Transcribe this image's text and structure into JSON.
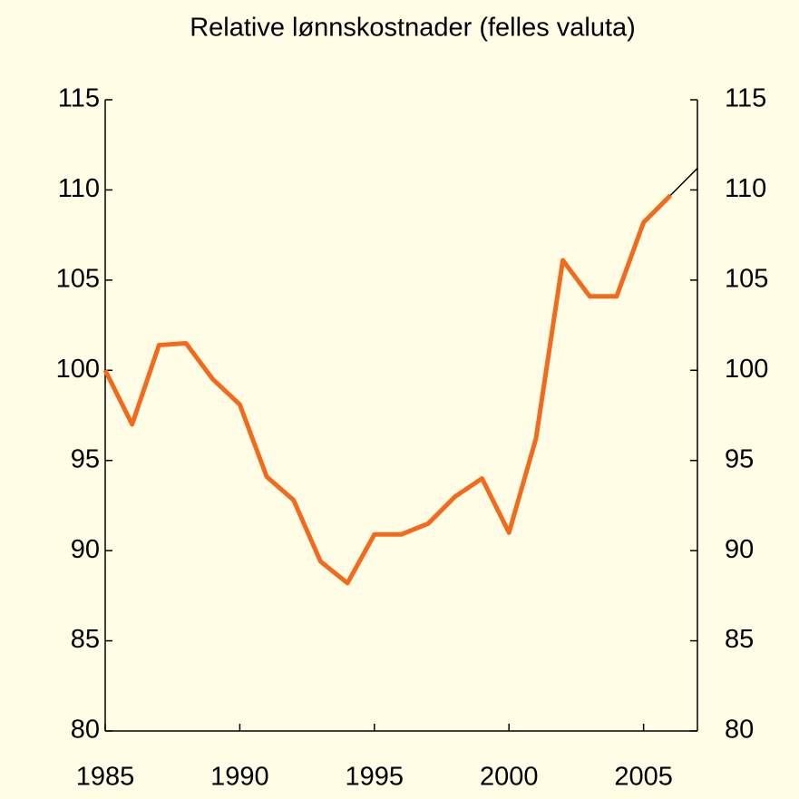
{
  "chart_data": {
    "type": "line",
    "title": "Relative lønnskostnader (felles valuta)",
    "x": [
      1985,
      1986,
      1987,
      1988,
      1989,
      1990,
      1991,
      1992,
      1993,
      1994,
      1995,
      1996,
      1997,
      1998,
      1999,
      2000,
      2001,
      2002,
      2003,
      2004,
      2005,
      2006,
      2007
    ],
    "series": [
      {
        "color": "#f26b1d",
        "values": [
          100,
          97,
          101.4,
          101.5,
          99.5,
          98.1,
          94.1,
          92.8,
          89.4,
          88.2,
          90.9,
          90.9,
          91.5,
          93,
          94,
          91,
          96.2,
          106.1,
          104.1,
          104.1,
          108.2,
          109.7,
          null
        ]
      },
      {
        "color": "#000000",
        "values": [
          null,
          null,
          null,
          null,
          null,
          null,
          null,
          null,
          null,
          null,
          null,
          null,
          null,
          null,
          null,
          null,
          null,
          null,
          null,
          null,
          null,
          109.7,
          111.2
        ]
      }
    ],
    "xlim": [
      1985,
      2007
    ],
    "xticks": [
      1985,
      1990,
      1995,
      2000,
      2005
    ],
    "ylim": [
      80,
      115
    ],
    "yticks": [
      80,
      85,
      90,
      95,
      100,
      105,
      110,
      115
    ],
    "y2lim": [
      80,
      115
    ],
    "y2ticks": [
      80,
      85,
      90,
      95,
      100,
      105,
      110,
      115
    ]
  }
}
